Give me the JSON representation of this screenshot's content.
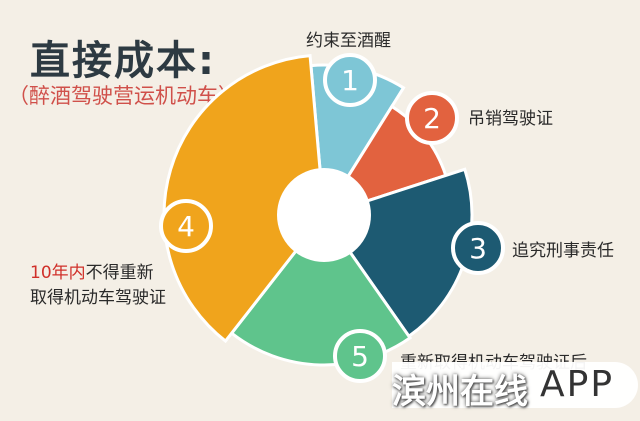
{
  "title": "直接成本:",
  "subtitle": "（醉酒驾驶营运机动车）",
  "colors": {
    "seg1": "#7ec6d6",
    "seg2": "#e2623f",
    "seg3": "#1d5a72",
    "seg4": "#f0a41c",
    "seg5": "#5fc48c"
  },
  "items": [
    {
      "number": "1",
      "label": "约束至酒醒"
    },
    {
      "number": "2",
      "label": "吊销驾驶证"
    },
    {
      "number": "3",
      "label": "追究刑事责任"
    },
    {
      "number": "4",
      "label_highlight": "10年内",
      "label_rest": "不得重新",
      "label_line2": "取得机动车驾驶证"
    },
    {
      "number": "5",
      "label": "重新取得机动车驾驶证后"
    }
  ],
  "watermark": {
    "text": "滨州在线",
    "app": "APP"
  }
}
